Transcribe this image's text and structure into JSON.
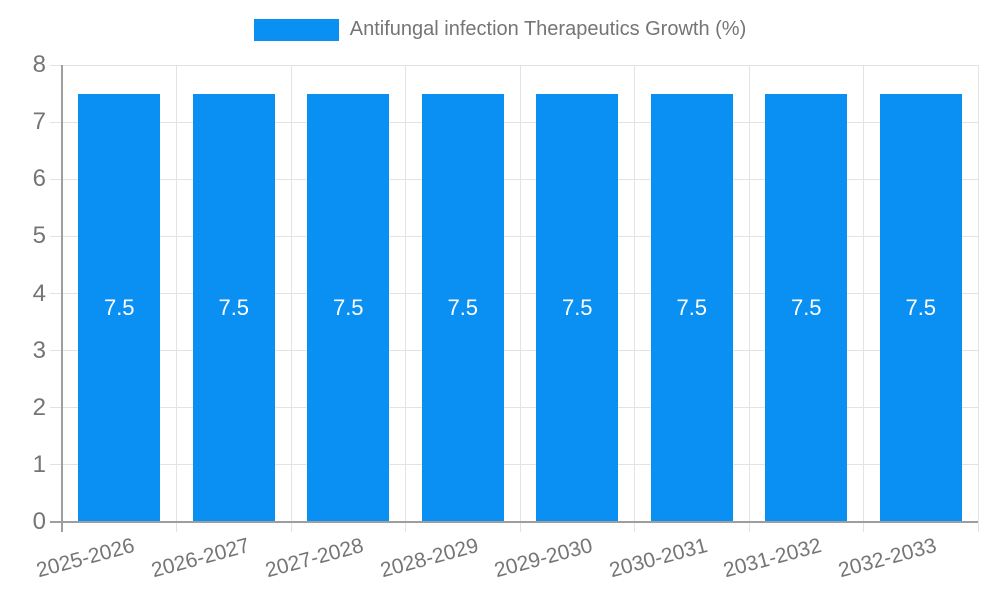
{
  "legend": {
    "label": "Antifungal infection Therapeutics Growth (%)"
  },
  "chart_data": {
    "type": "bar",
    "title": "",
    "xlabel": "",
    "ylabel": "",
    "categories": [
      "2025-2026",
      "2026-2027",
      "2027-2028",
      "2028-2029",
      "2029-2030",
      "2030-2031",
      "2031-2032",
      "2032-2033"
    ],
    "series": [
      {
        "name": "Antifungal infection Therapeutics Growth (%)",
        "values": [
          7.5,
          7.5,
          7.5,
          7.5,
          7.5,
          7.5,
          7.5,
          7.5
        ]
      }
    ],
    "value_labels": [
      "7.5",
      "7.5",
      "7.5",
      "7.5",
      "7.5",
      "7.5",
      "7.5",
      "7.5"
    ],
    "ylim": [
      0,
      8
    ],
    "yticks": [
      0,
      1,
      2,
      3,
      4,
      5,
      6,
      7,
      8
    ],
    "grid": true,
    "legend_position": "top",
    "colors": {
      "bar": "#0a8ff2",
      "axis_line": "#9e9e9e",
      "gridline": "#e3e3e3",
      "axis_text": "#757575",
      "value_label": "#ffffff",
      "background": "#ffffff"
    }
  }
}
